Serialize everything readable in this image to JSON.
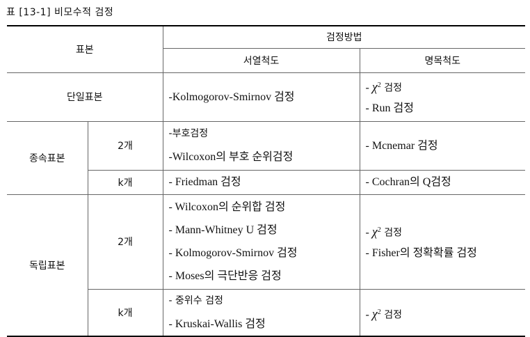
{
  "caption": "표 [13-1] 비모수적 검정",
  "header": {
    "sample": "표본",
    "method": "검정방법",
    "ordinal": "서열척도",
    "nominal": "명목척도"
  },
  "rows": {
    "single": {
      "label": "단일표본",
      "ordinal": [
        "-Kolmogorov-Smirnov 검정"
      ],
      "nominal": [
        "- χ² 검정",
        "- Run 검정"
      ]
    },
    "dependent": {
      "label": "종속표본",
      "two": {
        "k": "2개",
        "ordinal": [
          "-부호검정",
          "-Wilcoxon의 부호 순위검정"
        ],
        "nominal": [
          "- Mcnemar 검정"
        ]
      },
      "kgroup": {
        "k": "k개",
        "ordinal": [
          "- Friedman 검정"
        ],
        "nominal": [
          "- Cochran의 Q검정"
        ]
      }
    },
    "independent": {
      "label": "독립표본",
      "two": {
        "k": "2개",
        "ordinal": [
          "- Wilcoxon의 순위합 검정",
          "- Mann-Whitney U 검정",
          "- Kolmogorov-Smirnov 검정",
          "- Moses의 극단반응 검정"
        ],
        "nominal": [
          "- χ² 검정",
          "- Fisher의 정확확률 검정"
        ]
      },
      "kgroup": {
        "k": "k개",
        "ordinal": [
          "- 중위수 검정",
          "- Kruskai-Wallis 검정"
        ],
        "nominal": [
          "- χ² 검정"
        ]
      }
    }
  }
}
